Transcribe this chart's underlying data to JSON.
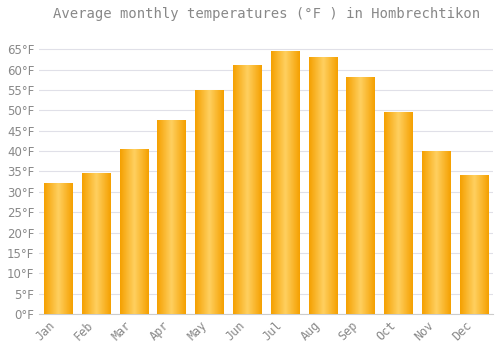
{
  "title": "Average monthly temperatures (°F ) in Hombrechtikon",
  "months": [
    "Jan",
    "Feb",
    "Mar",
    "Apr",
    "May",
    "Jun",
    "Jul",
    "Aug",
    "Sep",
    "Oct",
    "Nov",
    "Dec"
  ],
  "values": [
    32,
    34.5,
    40.5,
    47.5,
    55,
    61,
    64.5,
    63,
    58,
    49.5,
    40,
    34
  ],
  "bar_color_center": "#FFD060",
  "bar_color_edge": "#F5A000",
  "background_color": "#FFFFFF",
  "grid_color": "#E0E0E8",
  "text_color": "#888888",
  "ylim": [
    0,
    70
  ],
  "yticks": [
    0,
    5,
    10,
    15,
    20,
    25,
    30,
    35,
    40,
    45,
    50,
    55,
    60,
    65
  ],
  "title_fontsize": 10,
  "tick_fontsize": 8.5
}
